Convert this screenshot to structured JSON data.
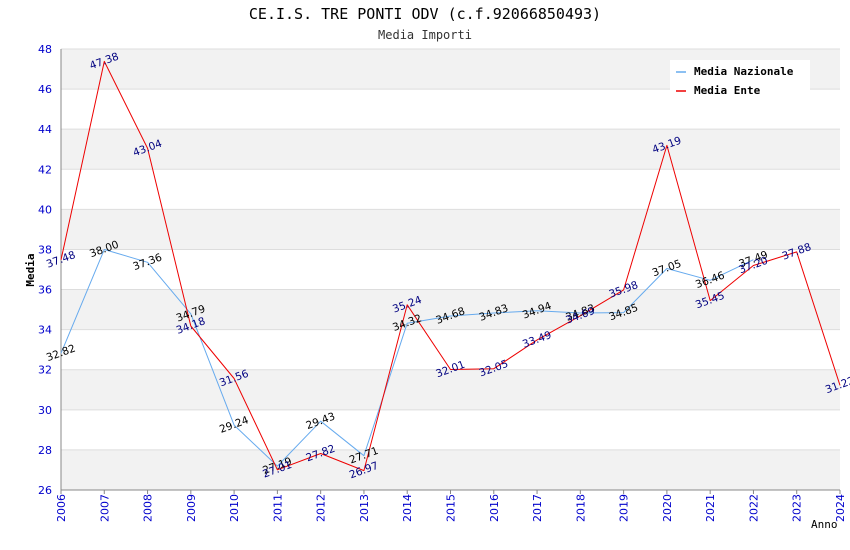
{
  "chart_data": {
    "type": "line",
    "title": "CE.I.S. TRE PONTI ODV (c.f.92066850493)",
    "subtitle": "Media Importi",
    "xlabel": "Anno",
    "ylabel": "Media",
    "ylim": [
      26,
      48
    ],
    "yticks": [
      "26",
      "28",
      "30",
      "32",
      "34",
      "36",
      "38",
      "40",
      "42",
      "44",
      "46",
      "48"
    ],
    "categories": [
      "2006",
      "2007",
      "2008",
      "2009",
      "2010",
      "2011",
      "2012",
      "2013",
      "2014",
      "2015",
      "2016",
      "2017",
      "2018",
      "2019",
      "2020",
      "2021",
      "2022",
      "2023",
      "2024"
    ],
    "legend_position": "top-right",
    "series": [
      {
        "name": "Media Nazionale",
        "color": "#66aaee",
        "values": [
          32.82,
          38.0,
          37.36,
          34.79,
          29.24,
          27.19,
          29.43,
          27.71,
          34.32,
          34.68,
          34.83,
          34.94,
          34.83,
          34.85,
          37.05,
          36.46,
          37.49,
          null,
          null
        ],
        "labels": [
          "32.82",
          "38.00",
          "37.36",
          "34.79",
          "29.24",
          "27.19",
          "29.43",
          "27.71",
          "34.32",
          "34.68",
          "34.83",
          "34.94",
          "34.83",
          "34.85",
          "37.05",
          "36.46",
          "37.49",
          "",
          ""
        ]
      },
      {
        "name": "Media Ente",
        "color": "#ee0000",
        "values": [
          37.48,
          47.38,
          43.04,
          34.18,
          31.56,
          27.01,
          27.82,
          26.97,
          35.24,
          32.01,
          32.05,
          33.49,
          34.69,
          35.98,
          43.19,
          35.45,
          37.2,
          37.88,
          31.22
        ],
        "labels": [
          "37.48",
          "47.38",
          "43.04",
          "34.18",
          "31.56",
          "27.01",
          "27.82",
          "26.97",
          "35.24",
          "32.01",
          "32.05",
          "33.49",
          "34.69",
          "35.98",
          "43.19",
          "35.45",
          "37.20",
          "37.88",
          "31.22"
        ]
      }
    ]
  }
}
